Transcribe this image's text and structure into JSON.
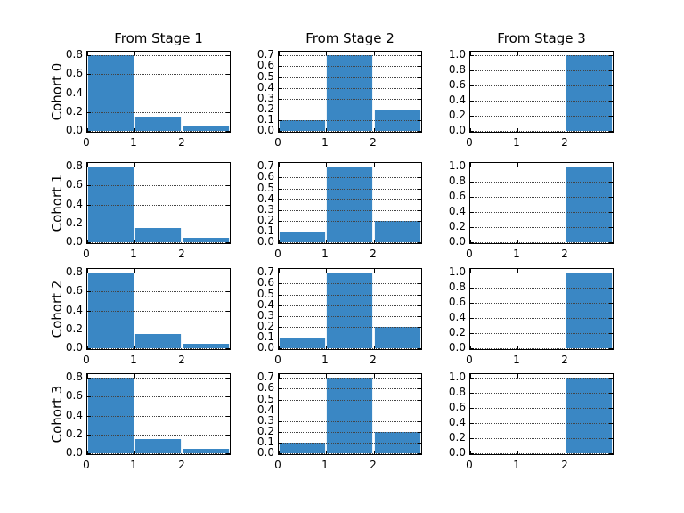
{
  "figure": {
    "background_color": "#ffffff",
    "bar_color": "#3a87c4",
    "grid_dot_color": "#444444",
    "col_titles": [
      "From Stage 1",
      "From Stage 2",
      "From Stage 3"
    ],
    "row_labels": [
      "Cohort 0",
      "Cohort 1",
      "Cohort 2",
      "Cohort 3"
    ]
  },
  "chart_data": {
    "type": "bar",
    "layout": "4 rows (cohorts) x 3 columns (stages)",
    "grid": true,
    "legend": false,
    "x_bin_edges": [
      0,
      1,
      2,
      3
    ],
    "xlim": [
      0,
      3
    ],
    "xtick_labels": [
      "0",
      "1",
      "2"
    ],
    "xticks": [
      0,
      1,
      2
    ],
    "subplots": [
      {
        "cohort": "Cohort 0",
        "stage": "From Stage 1",
        "values": [
          0.8,
          0.15,
          0.05
        ],
        "yticks": [
          0.0,
          0.2,
          0.4,
          0.6,
          0.8
        ],
        "ytick_labels": [
          "0.0",
          "0.2",
          "0.4",
          "0.6",
          "0.8"
        ],
        "ylim": [
          -0.028,
          0.84
        ]
      },
      {
        "cohort": "Cohort 0",
        "stage": "From Stage 2",
        "values": [
          0.1,
          0.7,
          0.2
        ],
        "yticks": [
          0.0,
          0.1,
          0.2,
          0.3,
          0.4,
          0.5,
          0.6,
          0.7
        ],
        "ytick_labels": [
          "0.0",
          "0.1",
          "0.2",
          "0.3",
          "0.4",
          "0.5",
          "0.6",
          "0.7"
        ],
        "ylim": [
          -0.0245,
          0.735
        ]
      },
      {
        "cohort": "Cohort 0",
        "stage": "From Stage 3",
        "values": [
          0.0,
          0.0,
          1.0
        ],
        "yticks": [
          0.0,
          0.2,
          0.4,
          0.6,
          0.8,
          1.0
        ],
        "ytick_labels": [
          "0.0",
          "0.2",
          "0.4",
          "0.6",
          "0.8",
          "1.0"
        ],
        "ylim": [
          -0.035,
          1.05
        ]
      },
      {
        "cohort": "Cohort 1",
        "stage": "From Stage 1",
        "values": [
          0.8,
          0.15,
          0.05
        ],
        "yticks": [
          0.0,
          0.2,
          0.4,
          0.6,
          0.8
        ],
        "ytick_labels": [
          "0.0",
          "0.2",
          "0.4",
          "0.6",
          "0.8"
        ],
        "ylim": [
          -0.028,
          0.84
        ]
      },
      {
        "cohort": "Cohort 1",
        "stage": "From Stage 2",
        "values": [
          0.1,
          0.7,
          0.2
        ],
        "yticks": [
          0.0,
          0.1,
          0.2,
          0.3,
          0.4,
          0.5,
          0.6,
          0.7
        ],
        "ytick_labels": [
          "0.0",
          "0.1",
          "0.2",
          "0.3",
          "0.4",
          "0.5",
          "0.6",
          "0.7"
        ],
        "ylim": [
          -0.0245,
          0.735
        ]
      },
      {
        "cohort": "Cohort 1",
        "stage": "From Stage 3",
        "values": [
          0.0,
          0.0,
          1.0
        ],
        "yticks": [
          0.0,
          0.2,
          0.4,
          0.6,
          0.8,
          1.0
        ],
        "ytick_labels": [
          "0.0",
          "0.2",
          "0.4",
          "0.6",
          "0.8",
          "1.0"
        ],
        "ylim": [
          -0.035,
          1.05
        ]
      },
      {
        "cohort": "Cohort 2",
        "stage": "From Stage 1",
        "values": [
          0.8,
          0.15,
          0.05
        ],
        "yticks": [
          0.0,
          0.2,
          0.4,
          0.6,
          0.8
        ],
        "ytick_labels": [
          "0.0",
          "0.2",
          "0.4",
          "0.6",
          "0.8"
        ],
        "ylim": [
          -0.028,
          0.84
        ]
      },
      {
        "cohort": "Cohort 2",
        "stage": "From Stage 2",
        "values": [
          0.1,
          0.7,
          0.2
        ],
        "yticks": [
          0.0,
          0.1,
          0.2,
          0.3,
          0.4,
          0.5,
          0.6,
          0.7
        ],
        "ytick_labels": [
          "0.0",
          "0.1",
          "0.2",
          "0.3",
          "0.4",
          "0.5",
          "0.6",
          "0.7"
        ],
        "ylim": [
          -0.0245,
          0.735
        ]
      },
      {
        "cohort": "Cohort 2",
        "stage": "From Stage 3",
        "values": [
          0.0,
          0.0,
          1.0
        ],
        "yticks": [
          0.0,
          0.2,
          0.4,
          0.6,
          0.8,
          1.0
        ],
        "ytick_labels": [
          "0.0",
          "0.2",
          "0.4",
          "0.6",
          "0.8",
          "1.0"
        ],
        "ylim": [
          -0.035,
          1.05
        ]
      },
      {
        "cohort": "Cohort 3",
        "stage": "From Stage 1",
        "values": [
          0.8,
          0.15,
          0.05
        ],
        "yticks": [
          0.0,
          0.2,
          0.4,
          0.6,
          0.8
        ],
        "ytick_labels": [
          "0.0",
          "0.2",
          "0.4",
          "0.6",
          "0.8"
        ],
        "ylim": [
          -0.028,
          0.84
        ]
      },
      {
        "cohort": "Cohort 3",
        "stage": "From Stage 2",
        "values": [
          0.1,
          0.7,
          0.2
        ],
        "yticks": [
          0.0,
          0.1,
          0.2,
          0.3,
          0.4,
          0.5,
          0.6,
          0.7
        ],
        "ytick_labels": [
          "0.0",
          "0.1",
          "0.2",
          "0.3",
          "0.4",
          "0.5",
          "0.6",
          "0.7"
        ],
        "ylim": [
          -0.0245,
          0.735
        ]
      },
      {
        "cohort": "Cohort 3",
        "stage": "From Stage 3",
        "values": [
          0.0,
          0.0,
          1.0
        ],
        "yticks": [
          0.0,
          0.2,
          0.4,
          0.6,
          0.8,
          1.0
        ],
        "ytick_labels": [
          "0.0",
          "0.2",
          "0.4",
          "0.6",
          "0.8",
          "1.0"
        ],
        "ylim": [
          -0.035,
          1.05
        ]
      }
    ]
  }
}
